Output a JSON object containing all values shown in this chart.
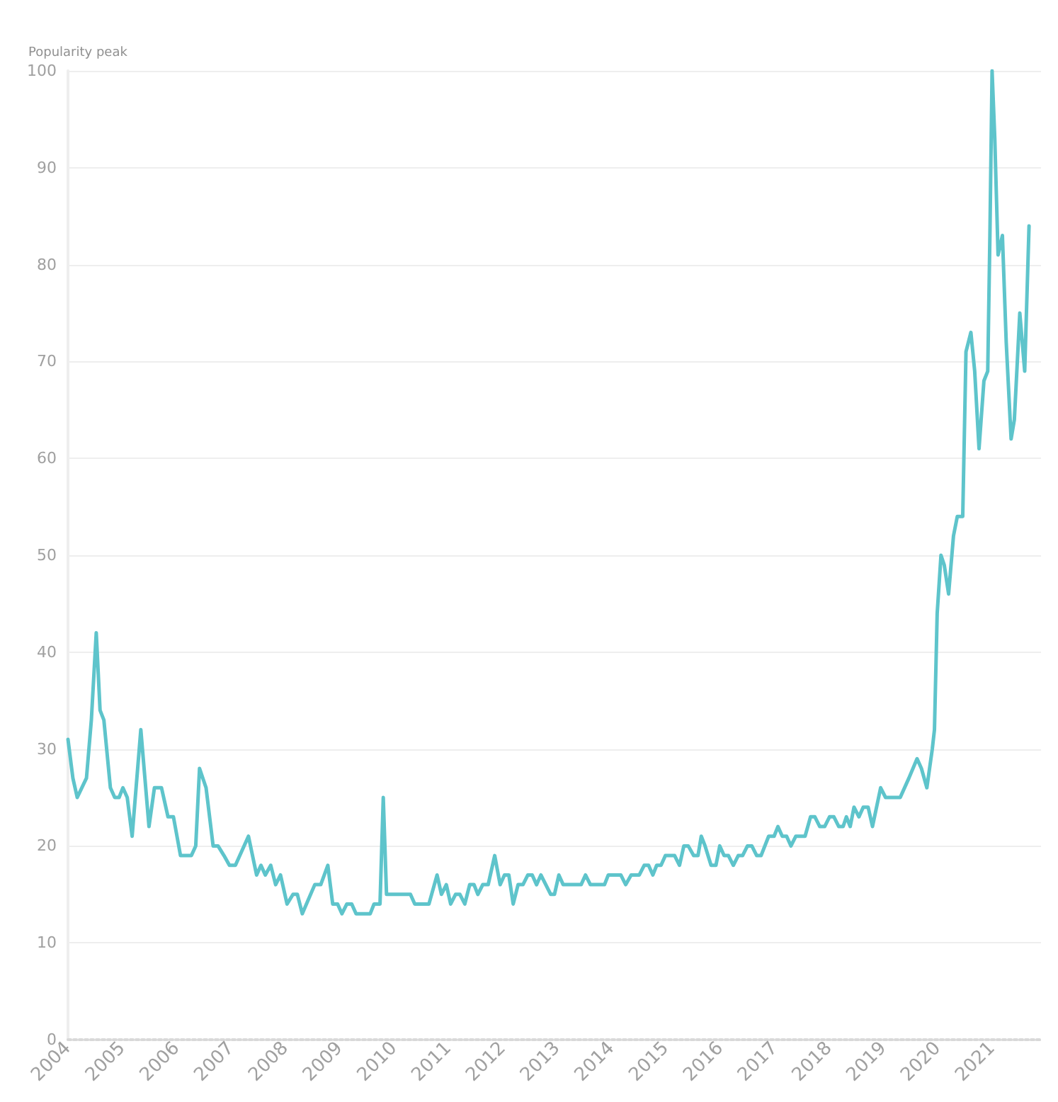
{
  "chart_data": {
    "type": "line",
    "ylabel": "Popularity peak",
    "x": [
      2004.0,
      2004.09,
      2004.17,
      2004.34,
      2004.43,
      2004.52,
      2004.59,
      2004.66,
      2004.78,
      2004.86,
      2004.94,
      2005.01,
      2005.09,
      2005.18,
      2005.34,
      2005.49,
      2005.59,
      2005.72,
      2005.84,
      2005.94,
      2006.07,
      2006.27,
      2006.35,
      2006.42,
      2006.54,
      2006.67,
      2006.76,
      2006.87,
      2006.97,
      2007.08,
      2007.32,
      2007.47,
      2007.55,
      2007.63,
      2007.73,
      2007.82,
      2007.91,
      2008.03,
      2008.14,
      2008.22,
      2008.31,
      2008.54,
      2008.65,
      2008.78,
      2008.87,
      2008.96,
      2009.04,
      2009.13,
      2009.22,
      2009.3,
      2009.56,
      2009.63,
      2009.74,
      2009.8,
      2009.86,
      2010.3,
      2010.38,
      2010.64,
      2010.79,
      2010.87,
      2010.96,
      2011.04,
      2011.13,
      2011.21,
      2011.3,
      2011.39,
      2011.47,
      2011.54,
      2011.63,
      2011.73,
      2011.85,
      2011.95,
      2012.03,
      2012.11,
      2012.19,
      2012.28,
      2012.37,
      2012.46,
      2012.54,
      2012.62,
      2012.7,
      2012.79,
      2012.88,
      2012.95,
      2013.03,
      2013.11,
      2013.44,
      2013.52,
      2013.61,
      2013.87,
      2013.94,
      2014.17,
      2014.26,
      2014.36,
      2014.51,
      2014.6,
      2014.68,
      2014.76,
      2014.83,
      2014.91,
      2014.99,
      2015.16,
      2015.25,
      2015.33,
      2015.41,
      2015.51,
      2015.59,
      2015.65,
      2015.72,
      2015.83,
      2015.92,
      2015.99,
      2016.07,
      2016.15,
      2016.24,
      2016.33,
      2016.41,
      2016.5,
      2016.58,
      2016.67,
      2016.75,
      2016.89,
      2016.99,
      2017.06,
      2017.14,
      2017.22,
      2017.3,
      2017.39,
      2017.56,
      2017.66,
      2017.74,
      2017.83,
      2017.92,
      2018.01,
      2018.09,
      2018.18,
      2018.26,
      2018.32,
      2018.39,
      2018.46,
      2018.55,
      2018.63,
      2018.72,
      2018.8,
      2018.95,
      2019.04,
      2019.31,
      2019.47,
      2019.62,
      2019.7,
      2019.8,
      2019.9,
      2019.94,
      2019.99,
      2020.06,
      2020.12,
      2020.2,
      2020.29,
      2020.36,
      2020.46,
      2020.52,
      2020.61,
      2020.68,
      2020.76,
      2020.85,
      2020.92,
      2020.96,
      2021.0,
      2021.05,
      2021.11,
      2021.19,
      2021.26,
      2021.35,
      2021.41,
      2021.51,
      2021.6,
      2021.68
    ],
    "values": [
      31,
      27,
      25,
      27,
      33,
      42,
      34,
      33,
      26,
      25,
      25,
      26,
      25,
      21,
      32,
      22,
      26,
      26,
      23,
      23,
      19,
      19,
      20,
      28,
      26,
      20,
      20,
      19,
      18,
      18,
      21,
      17,
      18,
      17,
      18,
      16,
      17,
      14,
      15,
      15,
      13,
      16,
      16,
      18,
      14,
      14,
      13,
      14,
      14,
      13,
      13,
      14,
      14,
      25,
      15,
      15,
      14,
      14,
      17,
      15,
      16,
      14,
      15,
      15,
      14,
      16,
      16,
      15,
      16,
      16,
      19,
      16,
      17,
      17,
      14,
      16,
      16,
      17,
      17,
      16,
      17,
      16,
      15,
      15,
      17,
      16,
      16,
      17,
      16,
      16,
      17,
      17,
      16,
      17,
      17,
      18,
      18,
      17,
      18,
      18,
      19,
      19,
      18,
      20,
      20,
      19,
      19,
      21,
      20,
      18,
      18,
      20,
      19,
      19,
      18,
      19,
      19,
      20,
      20,
      19,
      19,
      21,
      21,
      22,
      21,
      21,
      20,
      21,
      21,
      23,
      23,
      22,
      22,
      23,
      23,
      22,
      22,
      23,
      22,
      24,
      23,
      24,
      24,
      22,
      26,
      25,
      25,
      27,
      29,
      28,
      26,
      30,
      32,
      44,
      50,
      49,
      46,
      52,
      54,
      54,
      71,
      73,
      69,
      61,
      68,
      69,
      83,
      100,
      93,
      81,
      83,
      72,
      62,
      64,
      75,
      69,
      84
    ],
    "color": "#5ec4cb",
    "xlim": [
      2004,
      2021.9
    ],
    "xticks": [
      2004,
      2005,
      2006,
      2007,
      2008,
      2009,
      2010,
      2011,
      2012,
      2013,
      2014,
      2015,
      2016,
      2017,
      2018,
      2019,
      2020,
      2021
    ],
    "ylim": [
      0,
      100
    ],
    "yticks": [
      0,
      10,
      20,
      30,
      40,
      50,
      60,
      70,
      80,
      90,
      100
    ],
    "grid": "y",
    "marker": "none",
    "line_style": "solid"
  }
}
